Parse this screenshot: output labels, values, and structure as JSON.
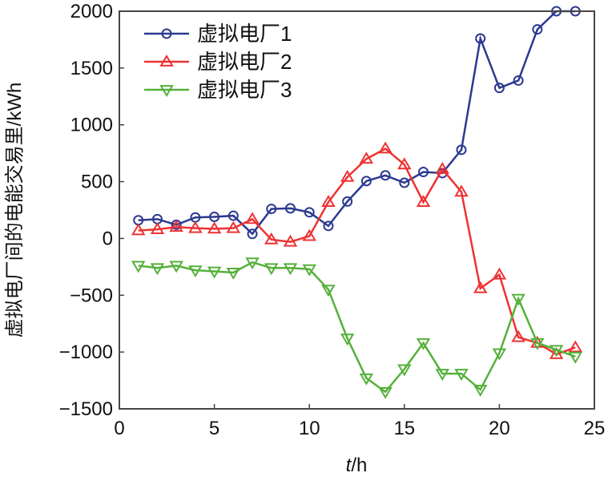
{
  "chart_data": {
    "type": "line",
    "title": "",
    "xlabel_italic": "t",
    "xlabel_unit": "/h",
    "ylabel": "虚拟电厂间的电能交易里/kWh",
    "xlim": [
      0,
      25
    ],
    "ylim": [
      -1500,
      2000
    ],
    "xticks": [
      0,
      5,
      10,
      15,
      20,
      25
    ],
    "yticks": [
      -1500,
      -1000,
      -500,
      0,
      500,
      1000,
      1500,
      2000
    ],
    "ytick_labels": [
      "−1500",
      "−1000",
      "−500",
      "0",
      "500",
      "1000",
      "1500",
      "2000"
    ],
    "grid": false,
    "legend_position": "top-left",
    "x": [
      1,
      2,
      3,
      4,
      5,
      6,
      7,
      8,
      9,
      10,
      11,
      12,
      13,
      14,
      15,
      16,
      17,
      18,
      19,
      20,
      21,
      22,
      23,
      24
    ],
    "series": [
      {
        "name": "虚拟电厂1",
        "color": "#2b3990",
        "marker": "circle",
        "values": [
          160,
          170,
          120,
          185,
          190,
          200,
          40,
          260,
          265,
          230,
          110,
          325,
          505,
          555,
          490,
          585,
          575,
          780,
          1760,
          1325,
          1390,
          1840,
          2000,
          2000
        ]
      },
      {
        "name": "虚拟电厂2",
        "color": "#ee3232",
        "marker": "triangle-up",
        "values": [
          70,
          80,
          100,
          90,
          85,
          90,
          170,
          -10,
          -30,
          20,
          320,
          540,
          700,
          790,
          650,
          320,
          610,
          410,
          -440,
          -320,
          -870,
          -920,
          -1020,
          -960
        ]
      },
      {
        "name": "虚拟电厂3",
        "color": "#55b03a",
        "marker": "triangle-down",
        "values": [
          -240,
          -260,
          -240,
          -280,
          -290,
          -300,
          -210,
          -260,
          -260,
          -270,
          -450,
          -880,
          -1230,
          -1350,
          -1150,
          -920,
          -1190,
          -1190,
          -1330,
          -1010,
          -530,
          -920,
          -980,
          -1040
        ]
      }
    ]
  }
}
